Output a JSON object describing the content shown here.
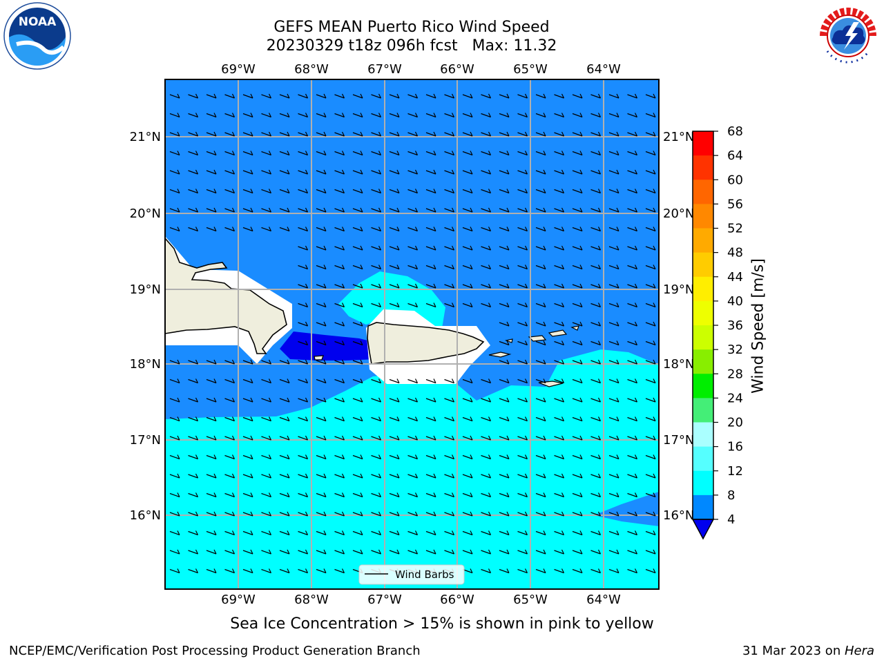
{
  "title_line1": "GEFS MEAN Puerto Rico Wind Speed",
  "title_line2": "20230329 t18z 096h fcst   Max: 11.32",
  "lon_ticks": [
    "69°W",
    "68°W",
    "67°W",
    "66°W",
    "65°W",
    "64°W"
  ],
  "lat_ticks": [
    "21°N",
    "20°N",
    "19°N",
    "18°N",
    "17°N",
    "16°N"
  ],
  "legend": {
    "label": "Wind Barbs"
  },
  "colorbar": {
    "label": "Wind Speed [m/s]",
    "ticks": [
      "68",
      "64",
      "60",
      "56",
      "52",
      "48",
      "44",
      "40",
      "36",
      "32",
      "28",
      "24",
      "20",
      "16",
      "12",
      "8",
      "4"
    ],
    "colors": [
      "#ff0000",
      "#ff3300",
      "#ff6600",
      "#ff8800",
      "#ffaa00",
      "#ffcc00",
      "#ffee00",
      "#ffff00",
      "#e5ff00",
      "#ccff00",
      "#88ee00",
      "#00ee00",
      "#00dd44",
      "#44ee88",
      "#aaffff",
      "#55ffff",
      "#00ffff",
      "#0088ff"
    ],
    "extend_color": "#0000ee"
  },
  "sea_ice_note": "Sea Ice Concentration > 15% is shown in pink to yellow",
  "footer": {
    "left": "NCEP/EMC/Verification Post Processing Product Generation Branch",
    "right_prefix": "31 Mar 2023 on ",
    "right_italic": "Hera"
  },
  "logos": {
    "noaa": "NOAA",
    "nws": "NATIONAL WEATHER SERVICE"
  },
  "colors": {
    "sea_moderate": "#1a8cff",
    "sea_strong": "#00ffff",
    "sea_calm": "#0000ee",
    "land": "#efeedd",
    "grid": "#b0b0b0"
  }
}
